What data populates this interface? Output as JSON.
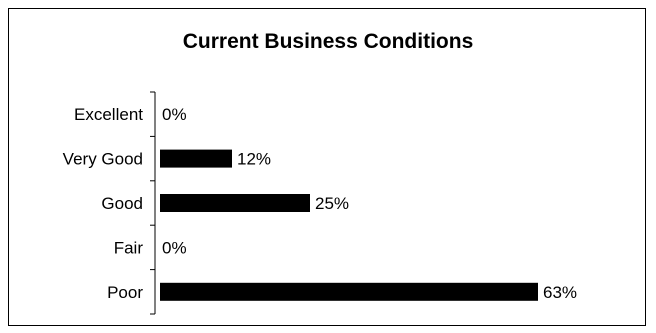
{
  "chart_data": {
    "type": "bar",
    "orientation": "horizontal",
    "title": "Current Business Conditions",
    "categories": [
      "Excellent",
      "Very Good",
      "Good",
      "Fair",
      "Poor"
    ],
    "values": [
      0,
      12,
      25,
      0,
      63
    ],
    "value_labels": [
      "0%",
      "12%",
      "25%",
      "0%",
      "63%"
    ],
    "unit": "%",
    "xlim": [
      0,
      63
    ],
    "bar_color": "#000000",
    "grid": false,
    "legend": "none"
  }
}
